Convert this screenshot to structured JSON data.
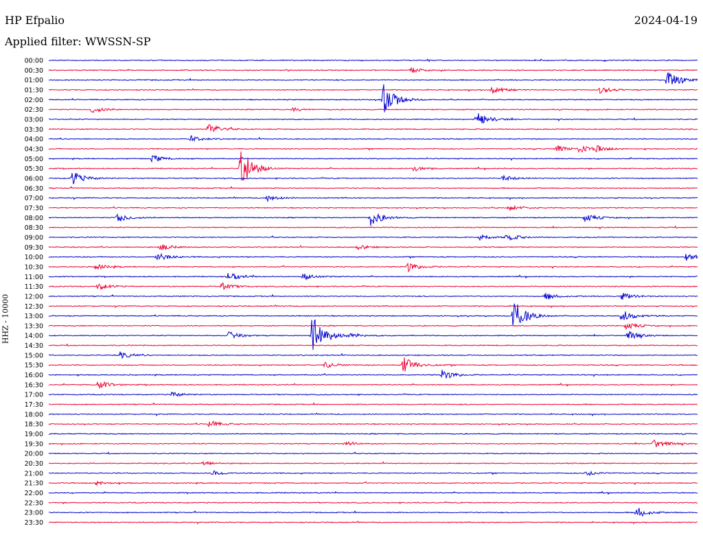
{
  "header": {
    "station": "HP Efpalio",
    "date": "2024-04-19",
    "filter": "Applied filter: WWSSN-SP"
  },
  "chart_data": {
    "type": "line",
    "subtype": "helicorder",
    "title": "HP Efpalio",
    "ylabel": "HHZ - 10000",
    "colors": [
      "#0000cc",
      "#ee0033"
    ],
    "rows": [
      "00:00",
      "00:30",
      "01:00",
      "01:30",
      "02:00",
      "02:30",
      "03:00",
      "03:30",
      "04:00",
      "04:30",
      "05:00",
      "05:30",
      "06:00",
      "06:30",
      "07:00",
      "07:30",
      "08:00",
      "08:30",
      "09:00",
      "09:30",
      "10:00",
      "10:30",
      "11:00",
      "11:30",
      "12:00",
      "12:30",
      "13:00",
      "13:30",
      "14:00",
      "14:30",
      "15:00",
      "15:30",
      "16:00",
      "16:30",
      "17:00",
      "17:30",
      "18:00",
      "18:30",
      "19:00",
      "19:30",
      "20:00",
      "20:30",
      "21:00",
      "21:30",
      "22:00",
      "22:30",
      "23:00",
      "23:30"
    ],
    "row_duration_min": 30,
    "events": [
      {
        "row": 1,
        "minute": 16.8,
        "amplitude": 0.3
      },
      {
        "row": 2,
        "minute": 28.6,
        "amplitude": 1.0
      },
      {
        "row": 3,
        "minute": 20.5,
        "amplitude": 0.45
      },
      {
        "row": 3,
        "minute": 25.5,
        "amplitude": 0.35
      },
      {
        "row": 4,
        "minute": 15.5,
        "amplitude": 1.7
      },
      {
        "row": 5,
        "minute": 2.0,
        "amplitude": 0.35
      },
      {
        "row": 5,
        "minute": 11.3,
        "amplitude": 0.2
      },
      {
        "row": 6,
        "minute": 19.8,
        "amplitude": 0.75
      },
      {
        "row": 7,
        "minute": 7.4,
        "amplitude": 0.6
      },
      {
        "row": 8,
        "minute": 6.6,
        "amplitude": 0.3
      },
      {
        "row": 9,
        "minute": 24.5,
        "amplitude": 0.4
      },
      {
        "row": 9,
        "minute": 23.5,
        "amplitude": 0.35
      },
      {
        "row": 9,
        "minute": 25.2,
        "amplitude": 0.35
      },
      {
        "row": 10,
        "minute": 4.8,
        "amplitude": 0.35
      },
      {
        "row": 11,
        "minute": 8.9,
        "amplitude": 2.2
      },
      {
        "row": 11,
        "minute": 16.8,
        "amplitude": 0.3
      },
      {
        "row": 12,
        "minute": 1.1,
        "amplitude": 0.7
      },
      {
        "row": 12,
        "minute": 21.0,
        "amplitude": 0.3
      },
      {
        "row": 14,
        "minute": 10.1,
        "amplitude": 0.3
      },
      {
        "row": 15,
        "minute": 21.3,
        "amplitude": 0.3
      },
      {
        "row": 16,
        "minute": 3.2,
        "amplitude": 0.45
      },
      {
        "row": 16,
        "minute": 14.9,
        "amplitude": 0.9
      },
      {
        "row": 16,
        "minute": 24.8,
        "amplitude": 0.4
      },
      {
        "row": 18,
        "minute": 19.9,
        "amplitude": 0.35
      },
      {
        "row": 18,
        "minute": 21.2,
        "amplitude": 0.35
      },
      {
        "row": 19,
        "minute": 5.2,
        "amplitude": 0.35
      },
      {
        "row": 19,
        "minute": 14.3,
        "amplitude": 0.25
      },
      {
        "row": 20,
        "minute": 5.0,
        "amplitude": 0.45
      },
      {
        "row": 20,
        "minute": 29.5,
        "amplitude": 0.4
      },
      {
        "row": 21,
        "minute": 16.6,
        "amplitude": 0.5
      },
      {
        "row": 21,
        "minute": 2.2,
        "amplitude": 0.3
      },
      {
        "row": 22,
        "minute": 8.3,
        "amplitude": 0.5
      },
      {
        "row": 22,
        "minute": 11.8,
        "amplitude": 0.35
      },
      {
        "row": 23,
        "minute": 2.3,
        "amplitude": 0.35
      },
      {
        "row": 23,
        "minute": 8.0,
        "amplitude": 0.35
      },
      {
        "row": 24,
        "minute": 23.0,
        "amplitude": 0.35
      },
      {
        "row": 24,
        "minute": 26.5,
        "amplitude": 0.35
      },
      {
        "row": 26,
        "minute": 21.5,
        "amplitude": 1.8
      },
      {
        "row": 26,
        "minute": 26.5,
        "amplitude": 0.6
      },
      {
        "row": 27,
        "minute": 26.7,
        "amplitude": 0.35
      },
      {
        "row": 28,
        "minute": 12.2,
        "amplitude": 2.5
      },
      {
        "row": 28,
        "minute": 8.3,
        "amplitude": 0.4
      },
      {
        "row": 28,
        "minute": 13.8,
        "amplitude": 0.3
      },
      {
        "row": 28,
        "minute": 26.8,
        "amplitude": 0.4
      },
      {
        "row": 30,
        "minute": 3.3,
        "amplitude": 0.35
      },
      {
        "row": 31,
        "minute": 16.4,
        "amplitude": 0.9
      },
      {
        "row": 31,
        "minute": 12.8,
        "amplitude": 0.3
      },
      {
        "row": 32,
        "minute": 18.2,
        "amplitude": 0.55
      },
      {
        "row": 33,
        "minute": 2.3,
        "amplitude": 0.4
      },
      {
        "row": 34,
        "minute": 5.7,
        "amplitude": 0.25
      },
      {
        "row": 37,
        "minute": 7.4,
        "amplitude": 0.35
      },
      {
        "row": 39,
        "minute": 28.0,
        "amplitude": 0.5
      },
      {
        "row": 39,
        "minute": 13.7,
        "amplitude": 0.25
      },
      {
        "row": 41,
        "minute": 7.1,
        "amplitude": 0.25
      },
      {
        "row": 42,
        "minute": 7.6,
        "amplitude": 0.25
      },
      {
        "row": 42,
        "minute": 24.9,
        "amplitude": 0.25
      },
      {
        "row": 43,
        "minute": 2.2,
        "amplitude": 0.2
      },
      {
        "row": 46,
        "minute": 27.2,
        "amplitude": 0.55
      }
    ]
  }
}
